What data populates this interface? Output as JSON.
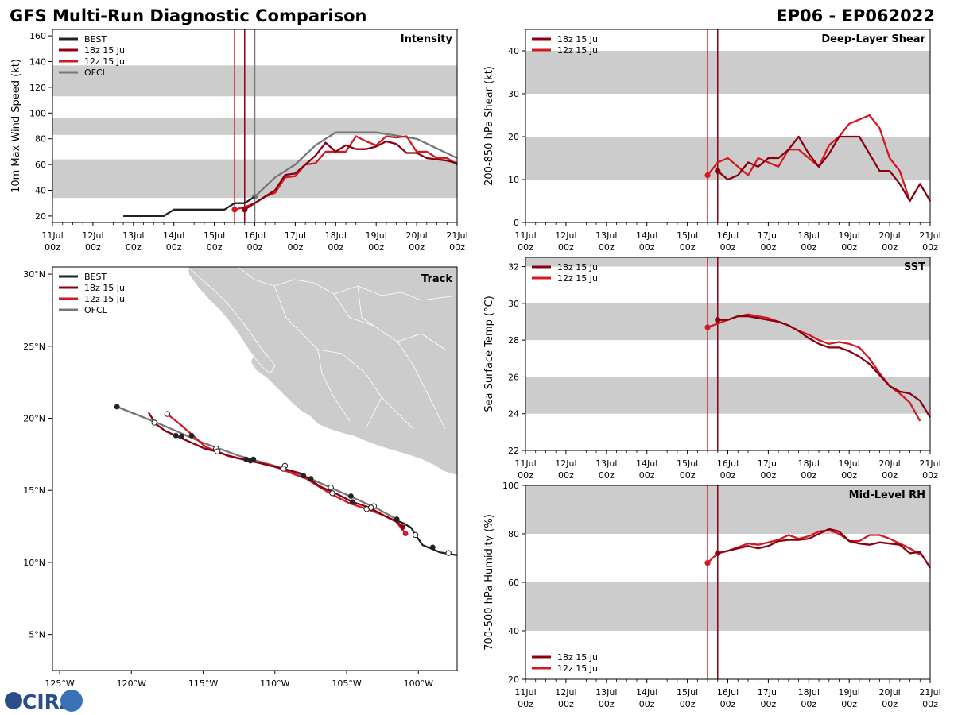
{
  "header": {
    "title_left": "GFS Multi-Run Diagnostic Comparison",
    "title_right": "EP06 - EP062022"
  },
  "logo": {
    "text": "CIRA"
  },
  "colors": {
    "best": "#222222",
    "run18": "#8b0011",
    "run12": "#d11a22",
    "ofcl": "#777777",
    "band": "#cccccc",
    "land": "#cccccc"
  },
  "time_axis": {
    "ticks": [
      "11Jul 00z",
      "12Jul 00z",
      "13Jul 00z",
      "14Jul 00z",
      "15Jul 00z",
      "16Jul 00z",
      "17Jul 00z",
      "18Jul 00z",
      "19Jul 00z",
      "20Jul 00z",
      "21Jul 00z"
    ]
  },
  "chart_data": [
    {
      "id": "intensity",
      "type": "line",
      "title": "Intensity",
      "ylabel": "10m Max Wind Speed (kt)",
      "xlim": [
        0,
        10
      ],
      "ylim": [
        15,
        165
      ],
      "yticks": [
        20,
        40,
        60,
        80,
        100,
        120,
        140,
        160
      ],
      "bands": [
        [
          34,
          64
        ],
        [
          83,
          96
        ],
        [
          113,
          137
        ]
      ],
      "vlines": [
        {
          "x": 4.5,
          "color": "run12"
        },
        {
          "x": 4.75,
          "color": "run18"
        },
        {
          "x": 5.0,
          "color": "ofcl"
        }
      ],
      "legend": [
        "BEST",
        "18z 15 Jul",
        "12z 15 Jul",
        "OFCL"
      ],
      "series": [
        {
          "name": "BEST",
          "color": "best",
          "x": [
            1.75,
            2.0,
            2.25,
            2.5,
            2.75,
            3.0,
            3.25,
            3.5,
            3.75,
            4.0,
            4.25,
            4.5,
            4.75,
            5.0
          ],
          "y": [
            20,
            20,
            20,
            20,
            20,
            25,
            25,
            25,
            25,
            25,
            25,
            30,
            30,
            35
          ]
        },
        {
          "name": "18z 15 Jul",
          "color": "run18",
          "marker": {
            "x": 4.75,
            "y": 25
          },
          "x": [
            4.75,
            5.0,
            5.25,
            5.5,
            5.75,
            6.0,
            6.25,
            6.5,
            6.75,
            7.0,
            7.25,
            7.5,
            7.75,
            8.0,
            8.25,
            8.5,
            8.75,
            9.0,
            9.25,
            9.5,
            9.75,
            10.0
          ],
          "y": [
            25,
            30,
            35,
            40,
            52,
            53,
            60,
            67,
            77,
            70,
            75,
            72,
            72,
            74,
            78,
            76,
            69,
            69,
            65,
            64,
            63,
            61
          ]
        },
        {
          "name": "12z 15 Jul",
          "color": "run12",
          "marker": {
            "x": 4.5,
            "y": 25
          },
          "x": [
            4.5,
            4.75,
            5.0,
            5.25,
            5.5,
            5.75,
            6.0,
            6.25,
            6.5,
            6.75,
            7.0,
            7.25,
            7.5,
            7.75,
            8.0,
            8.25,
            8.5,
            8.75,
            9.0,
            9.25,
            9.5,
            9.75,
            10.0
          ],
          "y": [
            25,
            27,
            30,
            35,
            38,
            50,
            51,
            60,
            61,
            70,
            70,
            70,
            82,
            78,
            75,
            82,
            81,
            82,
            70,
            70,
            65,
            65,
            60
          ]
        },
        {
          "name": "OFCL",
          "color": "ofcl",
          "marker": {
            "x": 5.0,
            "y": 35
          },
          "x": [
            5.0,
            5.5,
            6.0,
            6.5,
            7.0,
            8.0,
            9.0,
            10.0
          ],
          "y": [
            35,
            50,
            60,
            75,
            85,
            85,
            80,
            65
          ]
        }
      ]
    },
    {
      "id": "shear",
      "type": "line",
      "title": "Deep-Layer Shear",
      "ylabel": "200-850 hPa Shear (kt)",
      "xlim": [
        0,
        10
      ],
      "ylim": [
        0,
        45
      ],
      "yticks": [
        0,
        10,
        20,
        30,
        40
      ],
      "bands": [
        [
          10,
          20
        ],
        [
          30,
          40
        ]
      ],
      "vlines": [
        {
          "x": 4.5,
          "color": "run12"
        },
        {
          "x": 4.75,
          "color": "run18"
        }
      ],
      "legend": [
        "18z 15 Jul",
        "12z 15 Jul"
      ],
      "series": [
        {
          "name": "18z 15 Jul",
          "color": "run18",
          "marker": {
            "x": 4.75,
            "y": 12
          },
          "x": [
            4.75,
            5.0,
            5.25,
            5.5,
            5.75,
            6.0,
            6.25,
            6.5,
            6.75,
            7.0,
            7.25,
            7.5,
            7.75,
            8.0,
            8.25,
            8.5,
            8.75,
            9.0,
            9.25,
            9.5,
            9.75,
            10.0
          ],
          "y": [
            12,
            10,
            11,
            14,
            13,
            15,
            15,
            17,
            20,
            16,
            13,
            16,
            20,
            20,
            20,
            16,
            12,
            12,
            9,
            5,
            9,
            5
          ]
        },
        {
          "name": "12z 15 Jul",
          "color": "run12",
          "marker": {
            "x": 4.5,
            "y": 11
          },
          "x": [
            4.5,
            4.75,
            5.0,
            5.25,
            5.5,
            5.75,
            6.0,
            6.25,
            6.5,
            6.75,
            7.0,
            7.25,
            7.5,
            7.75,
            8.0,
            8.25,
            8.5,
            8.75,
            9.0,
            9.25,
            9.5
          ],
          "y": [
            11,
            14,
            15,
            13,
            11,
            15,
            14,
            13,
            17,
            17,
            15,
            13,
            18,
            20,
            23,
            24,
            25,
            22,
            15,
            12,
            5
          ]
        }
      ]
    },
    {
      "id": "track",
      "type": "scatter",
      "title": "Track",
      "xlim": [
        -125.5,
        -97.3
      ],
      "ylim": [
        2.5,
        30.5
      ],
      "xticks": [
        -125,
        -120,
        -115,
        -110,
        -105,
        -100
      ],
      "xticklabels": [
        "125°W",
        "120°W",
        "115°W",
        "110°W",
        "105°W",
        "100°W"
      ],
      "yticks": [
        5,
        10,
        15,
        20,
        25,
        30
      ],
      "yticklabels": [
        "5°N",
        "10°N",
        "15°N",
        "20°N",
        "25°N",
        "30°N"
      ],
      "legend": [
        "BEST",
        "18z 15 Jul",
        "12z 15 Jul",
        "OFCL"
      ],
      "series": [
        {
          "name": "BEST",
          "color": "best",
          "lon": [
            -97.3,
            -97.9,
            -98.5,
            -99.2,
            -99.7,
            -100.2,
            -100.5,
            -101.0,
            -101.5
          ],
          "lat": [
            10.5,
            10.6,
            10.7,
            11.0,
            11.2,
            11.9,
            12.4,
            12.7,
            12.9
          ]
        },
        {
          "name": "18z 15 Jul",
          "color": "run18",
          "x": [
            -101.0,
            -101.5,
            -102.3,
            -103.4,
            -104.6,
            -105.8,
            -106.9,
            -107.6,
            -108.3,
            -109.4,
            -110.3,
            -111.5,
            -112.4,
            -113.2,
            -114.1,
            -114.9,
            -115.8,
            -116.7,
            -117.6,
            -118.3,
            -118.8
          ],
          "y": [
            12.4,
            12.8,
            13.2,
            13.8,
            14.2,
            14.8,
            15.3,
            15.8,
            16.2,
            16.5,
            16.7,
            17.0,
            17.2,
            17.4,
            17.7,
            17.9,
            18.3,
            18.7,
            19.1,
            19.6,
            20.4
          ]
        },
        {
          "name": "12z 15 Jul",
          "color": "run12",
          "x": [
            -100.9,
            -101.6,
            -102.5,
            -103.6,
            -104.8,
            -106.0,
            -107.0,
            -107.8,
            -108.6,
            -109.6,
            -110.5,
            -111.6,
            -112.5,
            -113.3,
            -114.0,
            -114.8,
            -115.6,
            -116.5,
            -117.5
          ],
          "y": [
            12.0,
            12.9,
            13.3,
            13.7,
            14.1,
            14.7,
            15.3,
            15.8,
            16.1,
            16.5,
            16.8,
            17.0,
            17.2,
            17.4,
            17.7,
            18.0,
            18.7,
            19.5,
            20.3
          ]
        },
        {
          "name": "OFCL",
          "color": "ofcl",
          "x": [
            -101.5,
            -103.0,
            -105.0,
            -107.5,
            -110.0,
            -112.5,
            -115.0,
            -118.0,
            -121.0
          ],
          "y": [
            13.0,
            13.8,
            14.7,
            15.8,
            16.7,
            17.4,
            18.3,
            19.6,
            20.8
          ]
        }
      ],
      "filled_points": [
        [
          -121.0,
          20.8
        ],
        [
          -116.9,
          18.8
        ],
        [
          -116.5,
          18.75
        ],
        [
          -115.8,
          18.8
        ],
        [
          -112.0,
          17.15
        ],
        [
          -111.7,
          17.05
        ],
        [
          -111.5,
          17.15
        ],
        [
          -108.0,
          16.0
        ],
        [
          -107.5,
          15.8
        ],
        [
          -104.7,
          14.6
        ],
        [
          -104.6,
          14.2
        ],
        [
          -101.5,
          13.0
        ],
        [
          -99.0,
          11.05
        ],
        [
          -101.1,
          12.45
        ],
        [
          -100.9,
          12.0
        ]
      ],
      "open_points": [
        [
          -118.4,
          19.7
        ],
        [
          -117.5,
          20.3
        ],
        [
          -114.1,
          17.9
        ],
        [
          -114.0,
          17.7
        ],
        [
          -109.3,
          16.7
        ],
        [
          -109.4,
          16.5
        ],
        [
          -106.1,
          15.2
        ],
        [
          -106.0,
          14.8
        ],
        [
          -103.6,
          13.7
        ],
        [
          -103.1,
          13.9
        ],
        [
          -103.3,
          13.8
        ],
        [
          -100.2,
          11.9
        ],
        [
          -97.9,
          10.65
        ]
      ]
    },
    {
      "id": "sst",
      "type": "line",
      "title": "SST",
      "ylabel": "Sea Surface Temp (°C)",
      "xlim": [
        0,
        10
      ],
      "ylim": [
        22,
        32.5
      ],
      "yticks": [
        22,
        24,
        26,
        28,
        30,
        32
      ],
      "bands": [
        [
          24,
          26
        ],
        [
          28,
          30
        ],
        [
          32,
          32.5
        ]
      ],
      "vlines": [
        {
          "x": 4.5,
          "color": "run12"
        },
        {
          "x": 4.75,
          "color": "run18"
        }
      ],
      "legend": [
        "18z 15 Jul",
        "12z 15 Jul"
      ],
      "series": [
        {
          "name": "18z 15 Jul",
          "color": "run18",
          "marker": {
            "x": 4.75,
            "y": 29.1
          },
          "x": [
            4.75,
            5.0,
            5.25,
            5.5,
            5.75,
            6.0,
            6.25,
            6.5,
            6.75,
            7.0,
            7.25,
            7.5,
            7.75,
            8.0,
            8.25,
            8.5,
            8.75,
            9.0,
            9.25,
            9.5,
            9.75,
            10.0
          ],
          "y": [
            29.1,
            29.1,
            29.3,
            29.3,
            29.2,
            29.1,
            29.0,
            28.8,
            28.5,
            28.1,
            27.8,
            27.6,
            27.6,
            27.4,
            27.1,
            26.7,
            26.1,
            25.5,
            25.2,
            25.1,
            24.7,
            23.8
          ]
        },
        {
          "name": "12z 15 Jul",
          "color": "run12",
          "marker": {
            "x": 4.5,
            "y": 28.7
          },
          "x": [
            4.5,
            4.75,
            5.0,
            5.25,
            5.5,
            5.75,
            6.0,
            6.25,
            6.5,
            6.75,
            7.0,
            7.25,
            7.5,
            7.75,
            8.0,
            8.25,
            8.5,
            8.75,
            9.0,
            9.25,
            9.5,
            9.75
          ],
          "y": [
            28.7,
            28.9,
            29.1,
            29.3,
            29.4,
            29.3,
            29.2,
            29.0,
            28.8,
            28.5,
            28.3,
            28.0,
            27.8,
            27.9,
            27.8,
            27.6,
            27.0,
            26.2,
            25.5,
            25.1,
            24.6,
            23.6
          ]
        }
      ]
    },
    {
      "id": "rh",
      "type": "line",
      "title": "Mid-Level RH",
      "ylabel": "700-500 hPa Humidity (%)",
      "xlim": [
        0,
        10
      ],
      "ylim": [
        20,
        100
      ],
      "yticks": [
        20,
        40,
        60,
        80,
        100
      ],
      "bands": [
        [
          40,
          60
        ],
        [
          80,
          100
        ]
      ],
      "vlines": [
        {
          "x": 4.5,
          "color": "run12"
        },
        {
          "x": 4.75,
          "color": "run18"
        }
      ],
      "legend": [
        "18z 15 Jul",
        "12z 15 Jul"
      ],
      "series": [
        {
          "name": "18z 15 Jul",
          "color": "run18",
          "marker": {
            "x": 4.75,
            "y": 72
          },
          "x": [
            4.75,
            5.0,
            5.25,
            5.5,
            5.75,
            6.0,
            6.25,
            6.5,
            6.75,
            7.0,
            7.25,
            7.5,
            7.75,
            8.0,
            8.25,
            8.5,
            8.75,
            9.0,
            9.25,
            9.5,
            9.75,
            10.0
          ],
          "y": [
            72,
            73,
            74,
            75,
            74,
            75,
            77,
            77.5,
            77.5,
            78,
            80,
            82,
            81,
            77,
            76,
            75.5,
            76.5,
            76,
            75.5,
            72,
            72.5,
            66
          ]
        },
        {
          "name": "12z 15 Jul",
          "color": "run12",
          "marker": {
            "x": 4.5,
            "y": 68
          },
          "x": [
            4.5,
            4.75,
            5.0,
            5.25,
            5.5,
            5.75,
            6.0,
            6.25,
            6.5,
            6.75,
            7.0,
            7.25,
            7.5,
            7.75,
            8.0,
            8.25,
            8.5,
            8.75,
            9.0,
            9.25,
            9.5,
            9.75
          ],
          "y": [
            68,
            72,
            73,
            74.5,
            76,
            75.5,
            76.5,
            77.5,
            79.5,
            78,
            79,
            81,
            81.5,
            80,
            77,
            77,
            79.5,
            79.5,
            78,
            76,
            74,
            71.5
          ]
        }
      ]
    }
  ]
}
